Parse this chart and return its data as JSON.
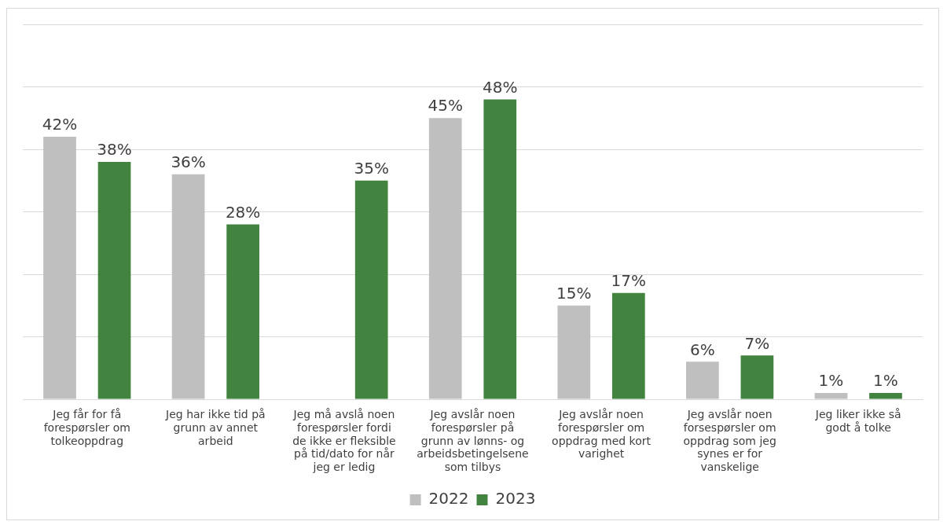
{
  "chart_data": {
    "type": "bar",
    "categories": [
      "Jeg får for få forespørsler om tolkeoppdrag",
      "Jeg har ikke tid på grunn av annet arbeid",
      "Jeg må avslå noen forespørsler fordi de ikke er fleksible på tid/dato for når jeg er ledig",
      "Jeg avslår noen forespørsler på grunn av lønns- og arbeidsbetingelsene som tilbys",
      "Jeg avslår noen forespørsler om oppdrag med kort varighet",
      "Jeg avslår noen forsespørsler om oppdrag som jeg synes er for vanskelige",
      "Jeg liker ikke så godt å tolke"
    ],
    "series": [
      {
        "name": "2022",
        "color": "#bfbfbf",
        "values": [
          42,
          36,
          null,
          45,
          15,
          6,
          1
        ],
        "value_labels": [
          "42%",
          "36%",
          null,
          "45%",
          "15%",
          "6%",
          "1%"
        ]
      },
      {
        "name": "2023",
        "color": "#428340",
        "values": [
          38,
          28,
          35,
          48,
          17,
          7,
          1
        ],
        "value_labels": [
          "38%",
          "28%",
          "35%",
          "48%",
          "17%",
          "7%",
          "1%"
        ]
      }
    ],
    "tick_labels": "x",
    "grid": "y",
    "legend": "bottom"
  }
}
